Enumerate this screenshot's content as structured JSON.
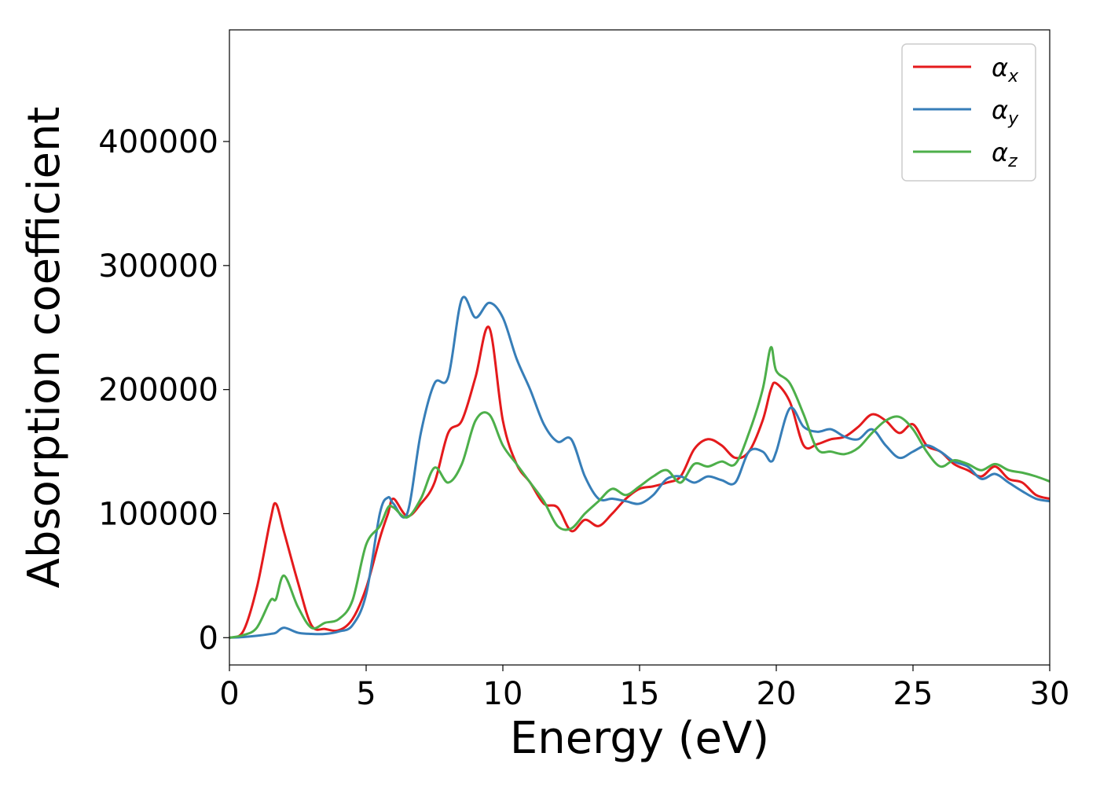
{
  "chart_data": {
    "type": "line",
    "xlabel": "Energy (eV)",
    "ylabel": "Absorption coefficient",
    "xlim": [
      0,
      30
    ],
    "ylim": [
      -22000,
      490000
    ],
    "x_ticks": [
      "0",
      "5",
      "10",
      "15",
      "20",
      "25",
      "30"
    ],
    "y_ticks": [
      "0",
      "100000",
      "200000",
      "300000",
      "400000"
    ],
    "grid": false,
    "legend_position": "top-right",
    "x": [
      0,
      0.5,
      1,
      1.5,
      1.7,
      2,
      2.5,
      3,
      3.5,
      4,
      4.5,
      5,
      5.5,
      5.8,
      6,
      6.5,
      7,
      7.5,
      8,
      8.5,
      9,
      9.5,
      10,
      10.5,
      11,
      11.5,
      12,
      12.5,
      13,
      13.5,
      14,
      14.5,
      15,
      15.5,
      16,
      16.5,
      17,
      17.5,
      18,
      18.5,
      19,
      19.5,
      19.8,
      20,
      20.5,
      21,
      21.5,
      22,
      22.5,
      23,
      23.5,
      24,
      24.5,
      25,
      25.5,
      26,
      26.5,
      27,
      27.5,
      28,
      28.5,
      29,
      29.5,
      30
    ],
    "series": [
      {
        "name": "α",
        "subscript": "x",
        "color": "#e41a1c",
        "values": [
          0,
          5000,
          40000,
          95000,
          108000,
          85000,
          45000,
          10000,
          7000,
          6000,
          15000,
          40000,
          80000,
          100000,
          112000,
          98000,
          108000,
          125000,
          165000,
          175000,
          210000,
          250000,
          175000,
          140000,
          125000,
          108000,
          105000,
          86000,
          95000,
          90000,
          100000,
          112000,
          120000,
          122000,
          125000,
          130000,
          152000,
          160000,
          155000,
          145000,
          150000,
          175000,
          200000,
          205000,
          190000,
          155000,
          156000,
          160000,
          162000,
          170000,
          180000,
          175000,
          165000,
          172000,
          155000,
          150000,
          140000,
          135000,
          130000,
          138000,
          128000,
          125000,
          115000,
          112000
        ]
      },
      {
        "name": "α",
        "subscript": "y",
        "color": "#377eb8",
        "values": [
          0,
          500,
          1500,
          3000,
          4000,
          8000,
          4000,
          3000,
          3000,
          5000,
          10000,
          35000,
          100000,
          113000,
          108000,
          100000,
          165000,
          205000,
          210000,
          273000,
          258000,
          270000,
          258000,
          225000,
          200000,
          172000,
          158000,
          160000,
          130000,
          112000,
          112000,
          110000,
          108000,
          115000,
          128000,
          130000,
          125000,
          130000,
          127000,
          125000,
          150000,
          150000,
          142000,
          150000,
          185000,
          170000,
          166000,
          168000,
          162000,
          160000,
          168000,
          155000,
          145000,
          150000,
          155000,
          150000,
          142000,
          138000,
          128000,
          132000,
          125000,
          118000,
          112000,
          110000
        ]
      },
      {
        "name": "α",
        "subscript": "z",
        "color": "#4daf4a",
        "values": [
          0,
          2000,
          8000,
          30000,
          31000,
          50000,
          25000,
          8000,
          12000,
          15000,
          30000,
          75000,
          90000,
          105000,
          105000,
          97000,
          112000,
          137000,
          125000,
          140000,
          175000,
          180000,
          155000,
          140000,
          125000,
          110000,
          90000,
          88000,
          100000,
          110000,
          120000,
          115000,
          122000,
          130000,
          135000,
          125000,
          140000,
          138000,
          142000,
          140000,
          165000,
          200000,
          234000,
          215000,
          205000,
          180000,
          152000,
          150000,
          148000,
          153000,
          165000,
          175000,
          178000,
          168000,
          150000,
          138000,
          143000,
          140000,
          135000,
          140000,
          135000,
          133000,
          130000,
          126000
        ]
      }
    ]
  }
}
